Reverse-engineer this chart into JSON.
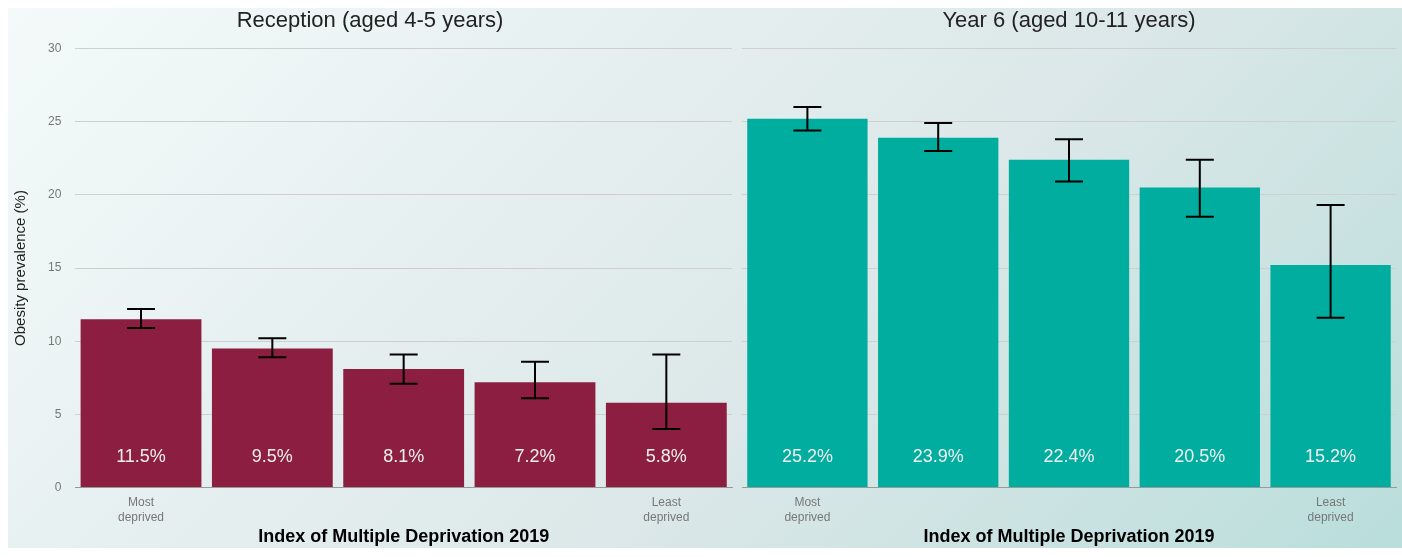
{
  "chart_data": [
    {
      "type": "bar",
      "title": "Reception (aged 4-5 years)",
      "ylabel": "Obesity prevalence (%)",
      "xlabel": "Index of Multiple Deprivation 2019",
      "categories": [
        "Most deprived",
        null,
        null,
        null,
        "Least deprived"
      ],
      "values": [
        11.5,
        9.5,
        8.1,
        7.2,
        5.8
      ],
      "value_labels": [
        "11.5%",
        "9.5%",
        "8.1%",
        "7.2%",
        "5.8%"
      ],
      "errors": [
        [
          10.9,
          12.2
        ],
        [
          8.9,
          10.2
        ],
        [
          7.1,
          9.1
        ],
        [
          6.1,
          8.6
        ],
        [
          4.0,
          9.1
        ]
      ],
      "color": "#8b1e41",
      "ylim": [
        0,
        30
      ],
      "yticks": [
        0,
        5,
        10,
        15,
        20,
        25,
        30
      ],
      "grid": "y"
    },
    {
      "type": "bar",
      "title": "Year 6 (aged 10-11 years)",
      "xlabel": "Index of Multiple Deprivation 2019",
      "categories": [
        "Most deprived",
        null,
        null,
        null,
        "Least deprived"
      ],
      "values": [
        25.2,
        23.9,
        22.4,
        20.5,
        15.2
      ],
      "value_labels": [
        "25.2%",
        "23.9%",
        "22.4%",
        "20.5%",
        "15.2%"
      ],
      "errors": [
        [
          24.4,
          26.0
        ],
        [
          23.0,
          24.9
        ],
        [
          20.9,
          23.8
        ],
        [
          18.5,
          22.4
        ],
        [
          11.6,
          19.3
        ]
      ],
      "color": "#00ad9f",
      "ylim": [
        0,
        30
      ],
      "yticks": [
        0,
        5,
        10,
        15,
        20,
        25,
        30
      ],
      "grid": "y",
      "tick_labels": "x"
    }
  ]
}
